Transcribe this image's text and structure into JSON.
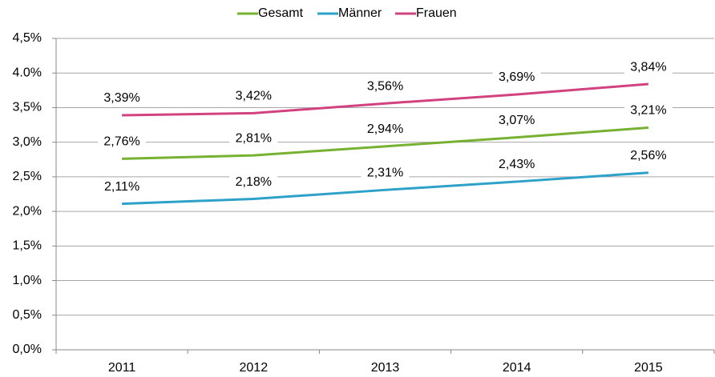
{
  "chart_data": {
    "type": "line",
    "categories": [
      "2011",
      "2012",
      "2013",
      "2014",
      "2015"
    ],
    "series": [
      {
        "name": "Gesamt",
        "color": "#77b131",
        "values": [
          2.76,
          2.81,
          2.94,
          3.07,
          3.21
        ],
        "value_labels": [
          "2,76%",
          "2,81%",
          "2,94%",
          "3,07%",
          "3,21%"
        ]
      },
      {
        "name": "Männer",
        "color": "#2ea1c9",
        "values": [
          2.11,
          2.18,
          2.31,
          2.43,
          2.56
        ],
        "value_labels": [
          "2,11%",
          "2,18%",
          "2,31%",
          "2,43%",
          "2,56%"
        ]
      },
      {
        "name": "Frauen",
        "color": "#d2427f",
        "values": [
          3.39,
          3.42,
          3.56,
          3.69,
          3.84
        ],
        "value_labels": [
          "3,39%",
          "3,42%",
          "3,56%",
          "3,69%",
          "3,84%"
        ]
      }
    ],
    "ylim": [
      0,
      4.5
    ],
    "yticks": [
      {
        "value": 0,
        "label": "0,0%"
      },
      {
        "value": 0.5,
        "label": "0,5%"
      },
      {
        "value": 1,
        "label": "1,0%"
      },
      {
        "value": 1.5,
        "label": "1,5%"
      },
      {
        "value": 2,
        "label": "2,0%"
      },
      {
        "value": 2.5,
        "label": "2,5%"
      },
      {
        "value": 3,
        "label": "3,0%"
      },
      {
        "value": 3.5,
        "label": "3,5%"
      },
      {
        "value": 4,
        "label": "4.0%"
      },
      {
        "value": 4.5,
        "label": "4,5%"
      }
    ],
    "grid": true,
    "legend": "top"
  }
}
